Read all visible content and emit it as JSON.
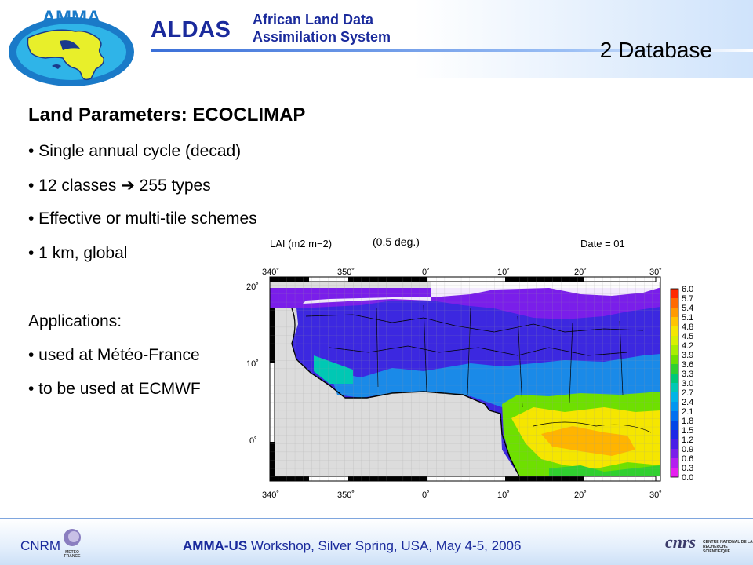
{
  "header": {
    "logo_text": "AMMA",
    "brand": "ALDAS",
    "brand_sub_line1": "African Land Data",
    "brand_sub_line2": "Assimilation System",
    "slide_title": "2 Database",
    "colors": {
      "brand": "#1a2a9c",
      "rule": "#3a6fd8"
    }
  },
  "content": {
    "heading": "Land Parameters: ECOCLIMAP",
    "bullets": [
      "• Single annual cycle (decad)",
      "• 12 classes ➔ 255 types",
      "• Effective or multi-tile schemes",
      "• 1 km, global"
    ],
    "applications_label": "Applications:",
    "applications": [
      "• used at Météo-France",
      "• to be used at ECMWF"
    ]
  },
  "map": {
    "title": "LAI (m2 m−2)",
    "resolution": "(0.5 deg.)",
    "date": "Date = 01",
    "lon_labels": [
      "340˚",
      "350˚",
      "0˚",
      "10˚",
      "20˚",
      "30˚"
    ],
    "lat_labels": [
      "20˚",
      "10˚",
      "0˚"
    ],
    "colorbar": {
      "labels": [
        "6.0",
        "5.7",
        "5.4",
        "5.1",
        "4.8",
        "4.5",
        "4.2",
        "3.9",
        "3.6",
        "3.3",
        "3.0",
        "2.7",
        "2.4",
        "2.1",
        "1.8",
        "1.5",
        "1.2",
        "0.9",
        "0.6",
        "0.3",
        "0.0"
      ],
      "colors": [
        "#ff2a00",
        "#ff6a00",
        "#ff9a00",
        "#ffc400",
        "#f5e600",
        "#d8f000",
        "#a8ee00",
        "#6ee000",
        "#30d030",
        "#00c878",
        "#00c8b4",
        "#00b4e6",
        "#0096f0",
        "#0070f0",
        "#0046e6",
        "#1e28e6",
        "#4a1ee6",
        "#7a1eea",
        "#b41ef0",
        "#e61ef0"
      ]
    }
  },
  "footer": {
    "cnrm": "CNRM",
    "meteo_france": "METEO FRANCE",
    "workshop_bold": "AMMA-US",
    "workshop_rest": " Workshop, Silver Spring, USA, May 4-5, 2006",
    "cnrs_text": "CENTRE NATIONAL DE LA RECHERCHE SCIENTIFIQUE"
  }
}
